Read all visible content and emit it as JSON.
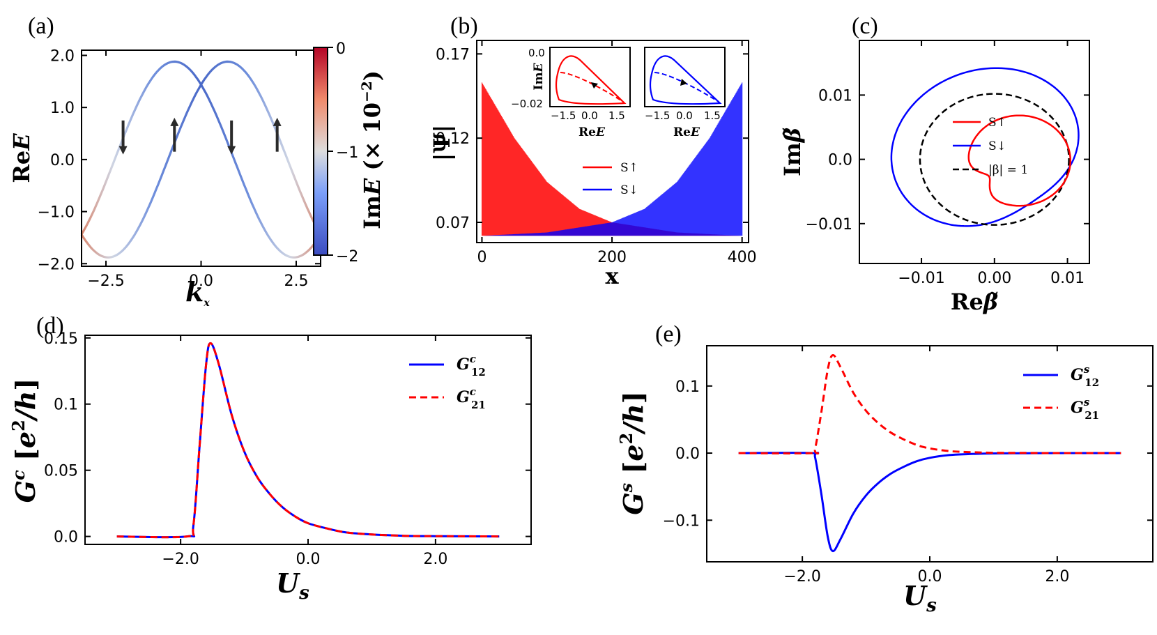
{
  "colors": {
    "red": "#ff0000",
    "blue": "#0000ff",
    "black": "#000000"
  },
  "panels": {
    "a": "(a)",
    "b": "(b)",
    "c": "(c)",
    "d": "(d)",
    "e": "(e)"
  },
  "chart_data": [
    {
      "id": "a",
      "type": "line",
      "xlabel": "k_x",
      "ylabel": "ReE",
      "colorbar_label": "ImE (× 10^-2)",
      "colorbar_ticks": [
        "0",
        "−1",
        "−2"
      ],
      "xlim": [
        -3.14159,
        3.14159
      ],
      "ylim": [
        -2.05,
        2.1
      ],
      "xticks": [
        "−2.5",
        "0.0",
        "2.5"
      ],
      "xtick_values": [
        -2.5,
        0.0,
        2.5
      ],
      "yticks": [
        "2.0",
        "1.0",
        "0.0",
        "−1.0",
        "−2.0"
      ],
      "ytick_values": [
        2.0,
        1.0,
        0.0,
        -1.0,
        -2.0
      ],
      "series": [
        {
          "k_shift": 0.7,
          "x_sample": [
            -3.14,
            -2.44,
            -1.5,
            -0.7,
            0.0,
            0.7,
            1.57,
            2.44,
            3.14
          ],
          "y_sample": [
            -1.53,
            -2.0,
            -0.8,
            1.54,
            2.0,
            1.54,
            0.6,
            -0.82,
            -1.53
          ]
        },
        {
          "k_shift": -0.7,
          "x_sample": [
            -3.14,
            -2.44,
            -1.57,
            -0.7,
            0.0,
            0.7,
            1.5,
            2.44,
            3.14
          ],
          "y_sample": [
            -1.53,
            -0.82,
            0.6,
            1.54,
            2.0,
            1.54,
            -0.8,
            -2.0,
            -1.53
          ]
        }
      ],
      "spin_arrows": [
        {
          "x": -2.05,
          "dir": "down"
        },
        {
          "x": -0.7,
          "dir": "up"
        },
        {
          "x": 0.8,
          "dir": "down"
        },
        {
          "x": 2.0,
          "dir": "up"
        }
      ]
    },
    {
      "id": "b",
      "type": "area",
      "xlabel": "x",
      "ylabel": "|Ψ|",
      "xlim": [
        -8,
        410
      ],
      "ylim": [
        0.058,
        0.178
      ],
      "xticks": [
        "0",
        "200",
        "400"
      ],
      "xtick_values": [
        0,
        200,
        400
      ],
      "yticks": [
        "0.17",
        "0.12",
        "0.07"
      ],
      "ytick_values": [
        0.17,
        0.12,
        0.07
      ],
      "series": [
        {
          "name": "S↑",
          "color": "#ff0000",
          "x_sample": [
            0,
            50,
            100,
            150,
            200,
            250,
            300,
            350,
            400
          ],
          "y_max": [
            0.153,
            0.12,
            0.094,
            0.078,
            0.07,
            0.067,
            0.064,
            0.063,
            0.062
          ]
        },
        {
          "name": "S↓",
          "color": "#0000ff",
          "x_sample": [
            0,
            50,
            100,
            150,
            200,
            250,
            300,
            350,
            400
          ],
          "y_max": [
            0.062,
            0.063,
            0.064,
            0.067,
            0.07,
            0.078,
            0.094,
            0.12,
            0.153
          ]
        }
      ],
      "insets": [
        {
          "xlabel": "ReE",
          "ylabel": "ImE",
          "xticks": [
            "−1.5",
            "0.0",
            "1.5"
          ],
          "yticks": [
            "0.0",
            "−0.02"
          ],
          "color": "#ff0000"
        },
        {
          "xlabel": "ReE",
          "xticks": [
            "−1.5",
            "0.0",
            "1.5"
          ],
          "color": "#0000ff"
        }
      ]
    },
    {
      "id": "c",
      "type": "line",
      "xlabel": "Reβ̃",
      "ylabel": "Imβ̃",
      "xlim": [
        -0.0185,
        0.013
      ],
      "ylim": [
        -0.0162,
        0.0185
      ],
      "xticks": [
        "−0.01",
        "0.00",
        "0.01"
      ],
      "xtick_values": [
        -0.01,
        0.0,
        0.01
      ],
      "yticks": [
        "0.01",
        "0.0",
        "−0.01"
      ],
      "ytick_values": [
        0.01,
        0.0,
        -0.01
      ],
      "series": [
        {
          "name": "S↑",
          "color": "#ff0000",
          "style": "solid"
        },
        {
          "name": "S↓",
          "color": "#0000ff",
          "style": "solid"
        },
        {
          "name": "|β| = 1",
          "color": "#000000",
          "style": "dashed",
          "radius": 0.0102
        }
      ]
    },
    {
      "id": "d",
      "type": "line",
      "xlabel": "U_s",
      "ylabel": "G^c [e²/h]",
      "xlim": [
        -3.5,
        3.5
      ],
      "ylim": [
        -0.006,
        0.152
      ],
      "xticks": [
        "−2.0",
        "0.0",
        "2.0"
      ],
      "xtick_values": [
        -2.0,
        0.0,
        2.0
      ],
      "yticks": [
        "0.15",
        "0.1",
        "0.05",
        "0.0"
      ],
      "ytick_values": [
        0.15,
        0.1,
        0.05,
        0.0
      ],
      "series": [
        {
          "name": "G^c_12",
          "color": "#0000ff",
          "style": "solid",
          "x": [
            -3.0,
            -1.9,
            -1.8,
            -1.7,
            -1.6,
            -1.53,
            -1.4,
            -1.2,
            -1.0,
            -0.8,
            -0.6,
            -0.4,
            -0.2,
            0.0,
            0.3,
            0.6,
            1.0,
            1.5,
            2.0,
            3.0
          ],
          "y": [
            0.0,
            0.0,
            0.008,
            0.07,
            0.13,
            0.146,
            0.13,
            0.092,
            0.064,
            0.045,
            0.032,
            0.022,
            0.015,
            0.01,
            0.006,
            0.003,
            0.0015,
            0.0005,
            0.0002,
            0.0
          ]
        },
        {
          "name": "G^c_21",
          "color": "#ff0000",
          "style": "dashed",
          "x": [
            -3.0,
            -1.9,
            -1.8,
            -1.7,
            -1.6,
            -1.53,
            -1.4,
            -1.2,
            -1.0,
            -0.8,
            -0.6,
            -0.4,
            -0.2,
            0.0,
            0.3,
            0.6,
            1.0,
            1.5,
            2.0,
            3.0
          ],
          "y": [
            0.0,
            0.0,
            0.008,
            0.07,
            0.13,
            0.146,
            0.13,
            0.092,
            0.064,
            0.045,
            0.032,
            0.022,
            0.015,
            0.01,
            0.006,
            0.003,
            0.0015,
            0.0005,
            0.0002,
            0.0
          ]
        }
      ]
    },
    {
      "id": "e",
      "type": "line",
      "xlabel": "U_s",
      "ylabel": "G^s [e²/h]",
      "xlim": [
        -3.5,
        3.5
      ],
      "ylim": [
        -0.162,
        0.16
      ],
      "xticks": [
        "−2.0",
        "0.0",
        "2.0"
      ],
      "xtick_values": [
        -2.0,
        0.0,
        2.0
      ],
      "yticks": [
        "0.1",
        "0.0",
        "−0.1"
      ],
      "ytick_values": [
        0.1,
        0.0,
        -0.1
      ],
      "series": [
        {
          "name": "G^s_12",
          "color": "#0000ff",
          "style": "solid",
          "x": [
            -3.0,
            -1.85,
            -1.8,
            -1.7,
            -1.6,
            -1.52,
            -1.4,
            -1.2,
            -1.0,
            -0.8,
            -0.6,
            -0.4,
            -0.2,
            0.0,
            0.3,
            0.6,
            1.0,
            1.5,
            2.0,
            3.0
          ],
          "y": [
            0.0,
            0.0,
            -0.006,
            -0.062,
            -0.125,
            -0.146,
            -0.128,
            -0.09,
            -0.063,
            -0.044,
            -0.03,
            -0.02,
            -0.012,
            -0.007,
            -0.003,
            -0.0015,
            -0.0005,
            -0.0002,
            0.0,
            0.0
          ]
        },
        {
          "name": "G^s_21",
          "color": "#ff0000",
          "style": "dashed",
          "x": [
            -3.0,
            -1.85,
            -1.8,
            -1.7,
            -1.6,
            -1.52,
            -1.4,
            -1.2,
            -1.0,
            -0.8,
            -0.6,
            -0.4,
            -0.2,
            0.0,
            0.3,
            0.6,
            1.0,
            1.5,
            2.0,
            3.0
          ],
          "y": [
            0.0,
            0.0,
            0.006,
            0.062,
            0.125,
            0.146,
            0.128,
            0.09,
            0.063,
            0.044,
            0.03,
            0.02,
            0.012,
            0.007,
            0.003,
            0.0015,
            0.0005,
            0.0002,
            0.0,
            0.0
          ]
        }
      ]
    }
  ]
}
